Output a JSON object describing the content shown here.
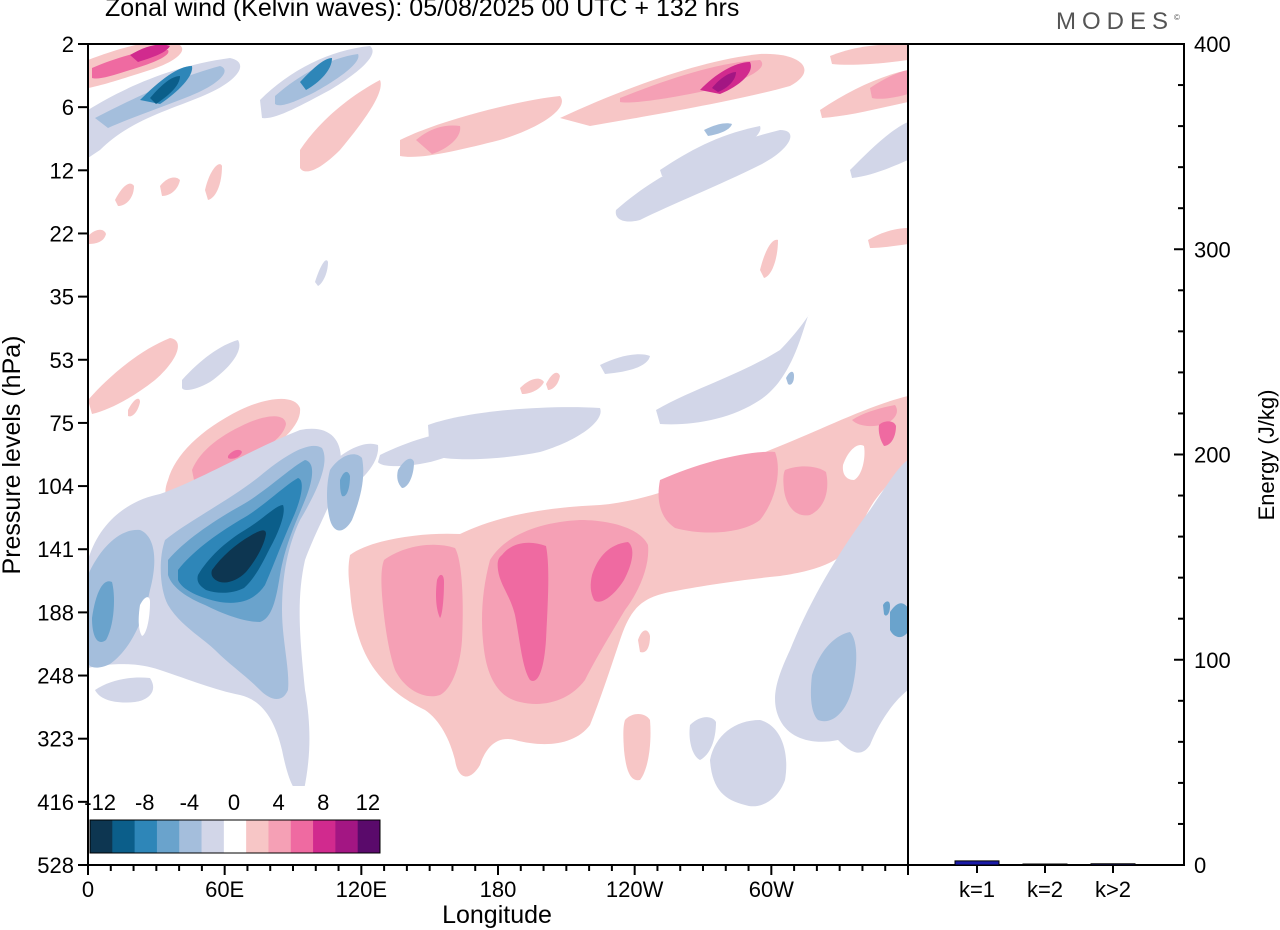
{
  "header": {
    "title": "Zonal wind (Kelvin waves):  05/08/2025  00 UTC  + 132 hrs",
    "brand": "MODES",
    "brand_mark": "©"
  },
  "chart_data": [
    {
      "type": "heatmap",
      "title": "Zonal wind (Kelvin waves):  05/08/2025  00 UTC  + 132 hrs",
      "xlabel": "Longitude",
      "ylabel": "Pressure levels (hPa)",
      "x_ticks": [
        "0",
        "60E",
        "120E",
        "180",
        "120W",
        "60W"
      ],
      "x_tick_degrees": [
        0,
        60,
        120,
        180,
        240,
        300
      ],
      "x_range_degrees": [
        0,
        360
      ],
      "y_ticks": [
        "2",
        "6",
        "12",
        "22",
        "35",
        "53",
        "75",
        "104",
        "141",
        "188",
        "248",
        "323",
        "416",
        "528"
      ],
      "colorbar": {
        "labels": [
          "-12",
          "-8",
          "-4",
          "0",
          "4",
          "8",
          "12"
        ],
        "levels": [
          -14,
          -12,
          -10,
          -8,
          -6,
          -4,
          -2,
          2,
          4,
          6,
          8,
          10,
          12,
          14
        ],
        "colors": [
          "#0d3651",
          "#0b5e8a",
          "#2e86b8",
          "#6aa3cc",
          "#a4bedc",
          "#d2d6e8",
          "#ffffff",
          "#f7c6c6",
          "#f5a0b5",
          "#ef6aa1",
          "#d12a8e",
          "#a31683",
          "#5a0a6b"
        ]
      },
      "features": [
        {
          "name": "negative anomaly 60E-90E 104-248 hPa",
          "sign": "negative",
          "min_value": -12
        },
        {
          "name": "positive anomaly 140E-130W 141-323 hPa",
          "sign": "positive",
          "max_value": 8
        },
        {
          "name": "positive anomaly 60E 75-104 hPa",
          "sign": "positive",
          "max_value": 6
        },
        {
          "name": "upper level wave train 2-12 hPa",
          "sign": "mixed",
          "max_value": 10
        }
      ]
    },
    {
      "type": "bar",
      "ylabel": "Energy (J/kg)",
      "categories": [
        "k=1",
        "k=2",
        "k>2"
      ],
      "values": [
        2,
        0.4,
        0.6
      ],
      "ylim": [
        0,
        400
      ],
      "y_ticks": [
        "0",
        "100",
        "200",
        "300",
        "400"
      ],
      "bar_color": "#1a1aa8"
    }
  ]
}
